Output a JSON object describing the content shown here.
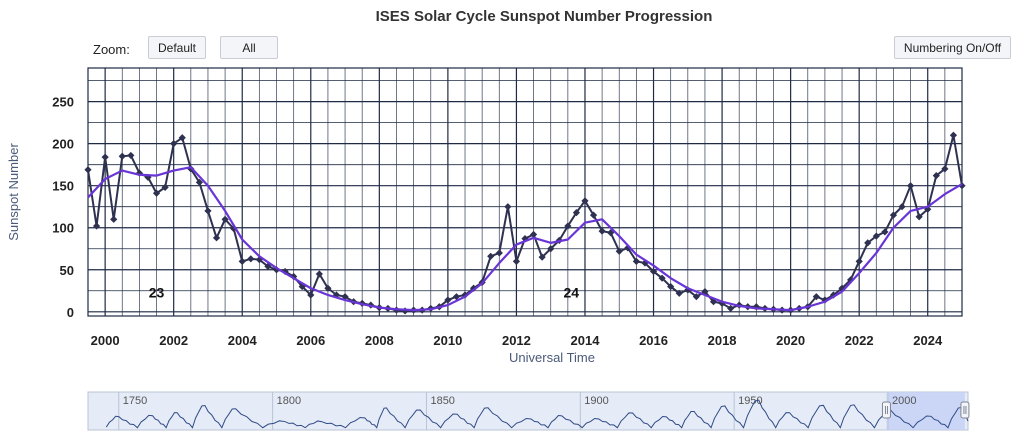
{
  "header": {
    "title": "ISES Solar Cycle Sunspot Number Progression"
  },
  "toolbar": {
    "zoom_label": "Zoom:",
    "default_label": "Default",
    "all_label": "All",
    "numbering_label": "Numbering On/Off"
  },
  "colors": {
    "observed": "#2e3150",
    "smoothed": "#6a35d6",
    "grid": "#1f2a44",
    "navigator_fill": "#e6ecf7",
    "navigator_line": "#2f4a86",
    "navigator_selection": "#c5d2f7"
  },
  "chart_data": {
    "type": "line",
    "title": "ISES Solar Cycle Sunspot Number Progression",
    "xlabel": "Universal Time",
    "ylabel": "Sunspot Number",
    "xlim": [
      1999.5,
      2025.0
    ],
    "ylim": [
      -5,
      290
    ],
    "x_ticks": [
      "2000",
      "2002",
      "2004",
      "2006",
      "2008",
      "2010",
      "2012",
      "2014",
      "2016",
      "2018",
      "2020",
      "2022",
      "2024"
    ],
    "y_ticks": [
      "0",
      "50",
      "100",
      "150",
      "200",
      "250"
    ],
    "grid": true,
    "annotations": [
      {
        "text": "23",
        "x": 2001.5,
        "y": 10
      },
      {
        "text": "24",
        "x": 2013.6,
        "y": 10
      }
    ],
    "series": [
      {
        "style": "line-with-diamond-markers",
        "points": [
          [
            1999.5,
            169
          ],
          [
            1999.75,
            102
          ],
          [
            2000.0,
            184
          ],
          [
            2000.25,
            110
          ],
          [
            2000.5,
            185
          ],
          [
            2000.75,
            186
          ],
          [
            2001.0,
            165
          ],
          [
            2001.25,
            160
          ],
          [
            2001.5,
            141
          ],
          [
            2001.75,
            148
          ],
          [
            2002.0,
            200
          ],
          [
            2002.25,
            207
          ],
          [
            2002.5,
            170
          ],
          [
            2002.75,
            154
          ],
          [
            2003.0,
            120
          ],
          [
            2003.25,
            88
          ],
          [
            2003.5,
            110
          ],
          [
            2003.75,
            99
          ],
          [
            2004.0,
            60
          ],
          [
            2004.25,
            63
          ],
          [
            2004.5,
            62
          ],
          [
            2004.75,
            54
          ],
          [
            2005.0,
            50
          ],
          [
            2005.25,
            48
          ],
          [
            2005.5,
            42
          ],
          [
            2005.75,
            30
          ],
          [
            2006.0,
            20
          ],
          [
            2006.25,
            45
          ],
          [
            2006.5,
            28
          ],
          [
            2006.75,
            20
          ],
          [
            2007.0,
            18
          ],
          [
            2007.25,
            12
          ],
          [
            2007.5,
            10
          ],
          [
            2007.75,
            8
          ],
          [
            2008.0,
            5
          ],
          [
            2008.25,
            4
          ],
          [
            2008.5,
            2
          ],
          [
            2008.75,
            1
          ],
          [
            2009.0,
            2
          ],
          [
            2009.25,
            2
          ],
          [
            2009.5,
            4
          ],
          [
            2009.75,
            6
          ],
          [
            2010.0,
            14
          ],
          [
            2010.25,
            18
          ],
          [
            2010.5,
            20
          ],
          [
            2010.75,
            28
          ],
          [
            2011.0,
            35
          ],
          [
            2011.25,
            66
          ],
          [
            2011.5,
            70
          ],
          [
            2011.75,
            125
          ],
          [
            2012.0,
            60
          ],
          [
            2012.25,
            87
          ],
          [
            2012.5,
            92
          ],
          [
            2012.75,
            65
          ],
          [
            2013.0,
            75
          ],
          [
            2013.25,
            85
          ],
          [
            2013.5,
            102
          ],
          [
            2013.75,
            118
          ],
          [
            2014.0,
            132
          ],
          [
            2014.25,
            115
          ],
          [
            2014.5,
            96
          ],
          [
            2014.75,
            94
          ],
          [
            2015.0,
            72
          ],
          [
            2015.25,
            76
          ],
          [
            2015.5,
            60
          ],
          [
            2015.75,
            58
          ],
          [
            2016.0,
            48
          ],
          [
            2016.25,
            40
          ],
          [
            2016.5,
            30
          ],
          [
            2016.75,
            22
          ],
          [
            2017.0,
            26
          ],
          [
            2017.25,
            18
          ],
          [
            2017.5,
            24
          ],
          [
            2017.75,
            12
          ],
          [
            2018.0,
            10
          ],
          [
            2018.25,
            4
          ],
          [
            2018.5,
            8
          ],
          [
            2018.75,
            6
          ],
          [
            2019.0,
            6
          ],
          [
            2019.25,
            4
          ],
          [
            2019.5,
            3
          ],
          [
            2019.75,
            2
          ],
          [
            2020.0,
            2
          ],
          [
            2020.25,
            4
          ],
          [
            2020.5,
            6
          ],
          [
            2020.75,
            18
          ],
          [
            2021.0,
            14
          ],
          [
            2021.25,
            20
          ],
          [
            2021.5,
            28
          ],
          [
            2021.75,
            38
          ],
          [
            2022.0,
            60
          ],
          [
            2022.25,
            82
          ],
          [
            2022.5,
            90
          ],
          [
            2022.75,
            95
          ],
          [
            2023.0,
            115
          ],
          [
            2023.25,
            125
          ],
          [
            2023.5,
            150
          ],
          [
            2023.75,
            113
          ],
          [
            2024.0,
            122
          ],
          [
            2024.25,
            162
          ],
          [
            2024.5,
            170
          ],
          [
            2024.75,
            210
          ],
          [
            2025.0,
            150
          ]
        ]
      },
      {
        "style": "smoothed-line",
        "points": [
          [
            1999.5,
            136
          ],
          [
            2000.0,
            158
          ],
          [
            2000.5,
            168
          ],
          [
            2001.0,
            163
          ],
          [
            2001.5,
            162
          ],
          [
            2002.0,
            168
          ],
          [
            2002.5,
            172
          ],
          [
            2003.0,
            150
          ],
          [
            2003.5,
            120
          ],
          [
            2004.0,
            86
          ],
          [
            2004.5,
            66
          ],
          [
            2005.0,
            52
          ],
          [
            2005.5,
            40
          ],
          [
            2006.0,
            28
          ],
          [
            2006.5,
            20
          ],
          [
            2007.0,
            14
          ],
          [
            2007.5,
            9
          ],
          [
            2008.0,
            5
          ],
          [
            2008.5,
            3
          ],
          [
            2009.0,
            2
          ],
          [
            2009.5,
            3
          ],
          [
            2010.0,
            8
          ],
          [
            2010.5,
            18
          ],
          [
            2011.0,
            34
          ],
          [
            2011.5,
            58
          ],
          [
            2012.0,
            80
          ],
          [
            2012.5,
            88
          ],
          [
            2013.0,
            82
          ],
          [
            2013.5,
            86
          ],
          [
            2014.0,
            106
          ],
          [
            2014.5,
            110
          ],
          [
            2015.0,
            90
          ],
          [
            2015.5,
            68
          ],
          [
            2016.0,
            55
          ],
          [
            2016.5,
            40
          ],
          [
            2017.0,
            28
          ],
          [
            2017.5,
            20
          ],
          [
            2018.0,
            12
          ],
          [
            2018.5,
            7
          ],
          [
            2019.0,
            4
          ],
          [
            2019.5,
            3
          ],
          [
            2020.0,
            2
          ],
          [
            2020.5,
            6
          ],
          [
            2021.0,
            12
          ],
          [
            2021.5,
            24
          ],
          [
            2022.0,
            46
          ],
          [
            2022.5,
            70
          ],
          [
            2023.0,
            100
          ],
          [
            2023.5,
            120
          ],
          [
            2024.0,
            125
          ],
          [
            2024.5,
            140
          ],
          [
            2025.0,
            152
          ]
        ]
      }
    ],
    "navigator": {
      "x_ticks": [
        "1750",
        "1800",
        "1850",
        "1900",
        "1950",
        "2000"
      ],
      "x_range": [
        1740,
        2026
      ],
      "selection": [
        1999.5,
        2025.0
      ],
      "cycle_peaks": [
        [
          1750,
          80
        ],
        [
          1761,
          86
        ],
        [
          1769,
          106
        ],
        [
          1778,
          154
        ],
        [
          1788,
          132
        ],
        [
          1804,
          47
        ],
        [
          1816,
          46
        ],
        [
          1830,
          71
        ],
        [
          1837,
          138
        ],
        [
          1848,
          124
        ],
        [
          1860,
          96
        ],
        [
          1870,
          139
        ],
        [
          1884,
          64
        ],
        [
          1894,
          85
        ],
        [
          1906,
          64
        ],
        [
          1917,
          104
        ],
        [
          1928,
          78
        ],
        [
          1937,
          114
        ],
        [
          1947,
          151
        ],
        [
          1958,
          190
        ],
        [
          1968,
          106
        ],
        [
          1979,
          155
        ],
        [
          1989,
          158
        ],
        [
          2001,
          120
        ],
        [
          2014,
          82
        ],
        [
          2024,
          140
        ]
      ]
    }
  }
}
